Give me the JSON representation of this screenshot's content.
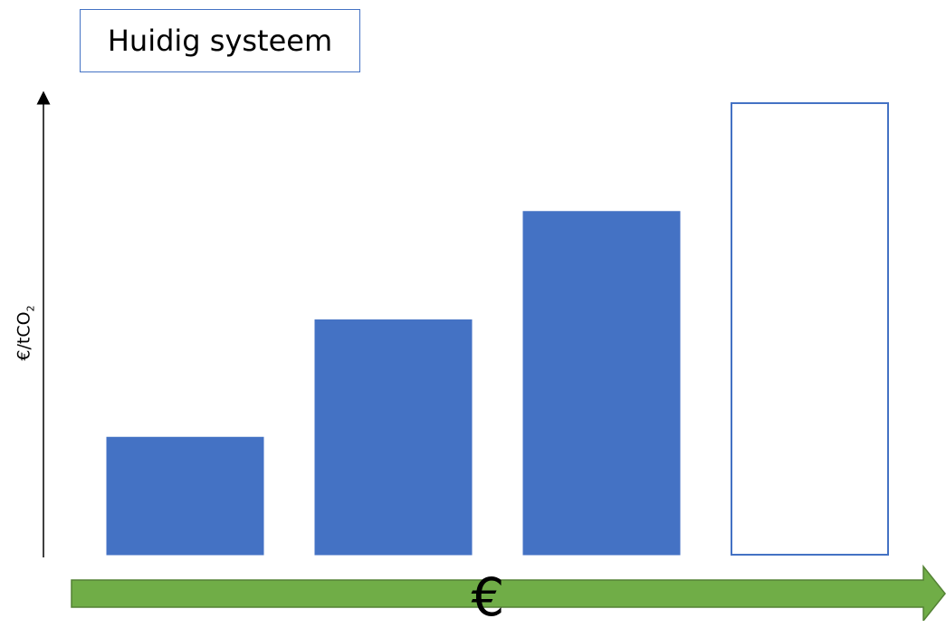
{
  "title": "Huidig systeem",
  "ylabel_main": "€/tCO",
  "ylabel_sub": "2",
  "x_symbol": "€",
  "colors": {
    "bar_fill": "#4472c4",
    "bar_outline": "#4472c4",
    "arrow": "#70ad47",
    "arrow_outline": "#548235"
  },
  "chart_data": {
    "type": "bar",
    "title": "Huidig systeem",
    "ylabel": "€/tCO2",
    "xlabel": "€",
    "categories": [
      "",
      "",
      "",
      ""
    ],
    "values": [
      26,
      52,
      76,
      100
    ],
    "styles": [
      "filled",
      "filled",
      "filled",
      "outline"
    ],
    "ylim": [
      0,
      100
    ],
    "grid": false,
    "legend": "none"
  }
}
